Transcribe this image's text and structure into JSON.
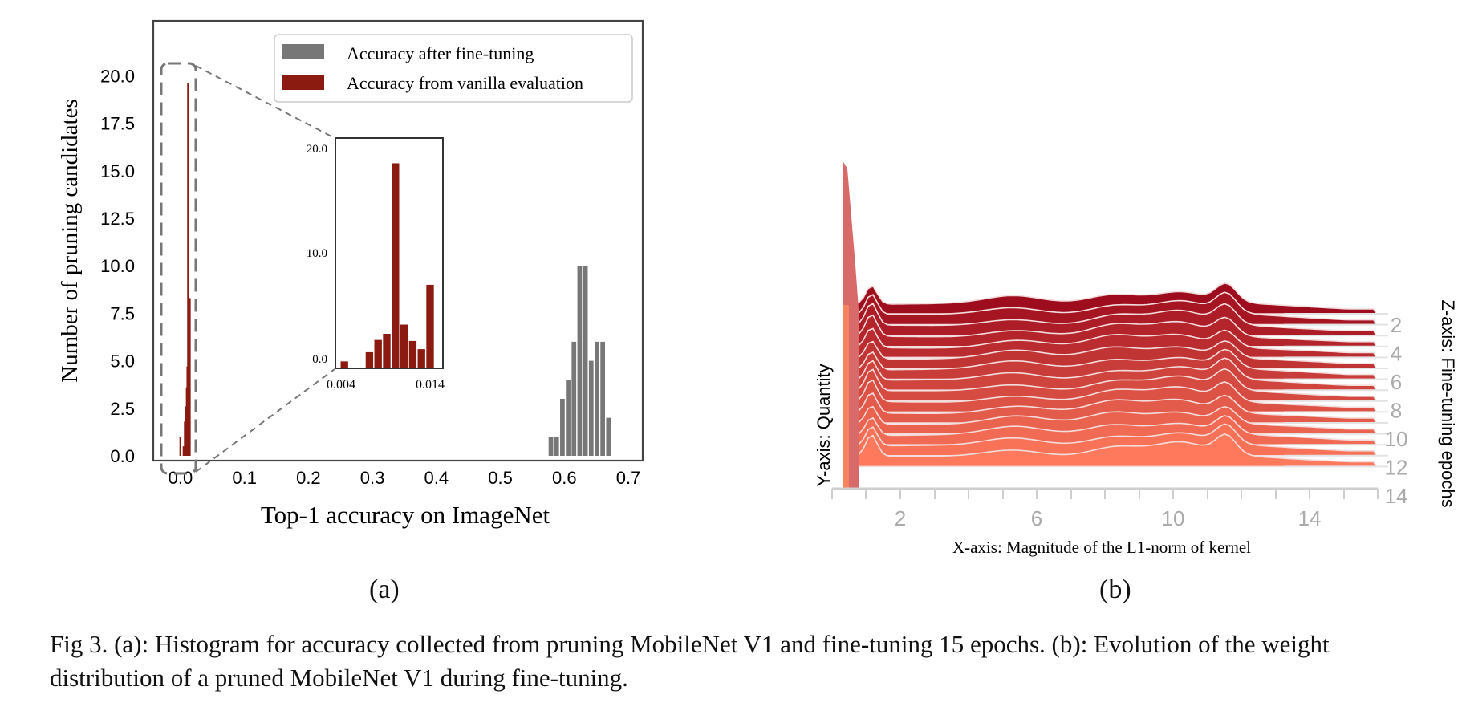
{
  "caption": "Fig 3. (a): Histogram for accuracy collected from pruning MobileNet V1 and fine-tuning 15 epochs. (b): Evolution of the weight distribution of a pruned MobileNet V1 during fine-tuning.",
  "panel_a_label": "(a)",
  "panel_b_label": "(b)",
  "colors": {
    "after": "#777777",
    "vanilla": "#8b1a10",
    "ridge_dark": "#9e0d1e",
    "ridge_light": "#ff7a5c"
  },
  "chart_data": [
    {
      "type": "bar",
      "xlabel": "Top-1 accuracy on ImageNet",
      "ylabel": "Number of pruning candidates",
      "xlim": [
        -0.03,
        0.71
      ],
      "ylim": [
        0,
        22
      ],
      "xticks": [
        "0.0",
        "0.1",
        "0.2",
        "0.3",
        "0.4",
        "0.5",
        "0.6",
        "0.7"
      ],
      "yticks": [
        "0.0",
        "2.5",
        "5.0",
        "7.5",
        "10.0",
        "12.5",
        "15.0",
        "17.5",
        "20.0"
      ],
      "legend_position": "top-right",
      "series": [
        {
          "name": "Accuracy after fine-tuning",
          "x": [
            0.579,
            0.588,
            0.597,
            0.606,
            0.615,
            0.624,
            0.633,
            0.642,
            0.651,
            0.66,
            0.669
          ],
          "values": [
            1,
            1,
            3,
            4,
            6,
            10,
            10,
            5,
            6,
            6,
            2
          ]
        },
        {
          "name": "Accuracy from vanilla evaluation",
          "x": [
            -0.001,
            0.004,
            0.006,
            0.008,
            0.009,
            0.01,
            0.011,
            0.012,
            0.014
          ],
          "values": [
            1,
            0.5,
            1.8,
            2.6,
            3.6,
            4.7,
            19.6,
            2.8,
            8.3
          ]
        }
      ]
    },
    {
      "type": "bar",
      "role": "inset zoom",
      "xlim": [
        0.004,
        0.0145
      ],
      "ylim": [
        0,
        22
      ],
      "xticks": [
        "0.004",
        "0.014"
      ],
      "yticks": [
        "0.0",
        "10.0",
        "20.0"
      ],
      "series": [
        {
          "name": "Accuracy from vanilla evaluation",
          "x": [
            0.0046,
            0.0072,
            0.0081,
            0.009,
            0.0099,
            0.0108,
            0.0117,
            0.0126,
            0.0135
          ],
          "values": [
            0.6,
            1.5,
            2.7,
            3.3,
            20.0,
            4.2,
            2.6,
            1.8,
            8.1
          ]
        }
      ]
    },
    {
      "type": "area",
      "style": "ridgeline",
      "xlabel": "X-axis: Magnitude of the L1-norm of kernel",
      "ylabel": "Y-axis: Quantity",
      "zlabel": "Z-axis: Fine-tuning epochs",
      "xticks": [
        "2",
        "6",
        "10",
        "14"
      ],
      "zticks": [
        "2",
        "4",
        "6",
        "8",
        "10",
        "12",
        "14"
      ]
    }
  ]
}
